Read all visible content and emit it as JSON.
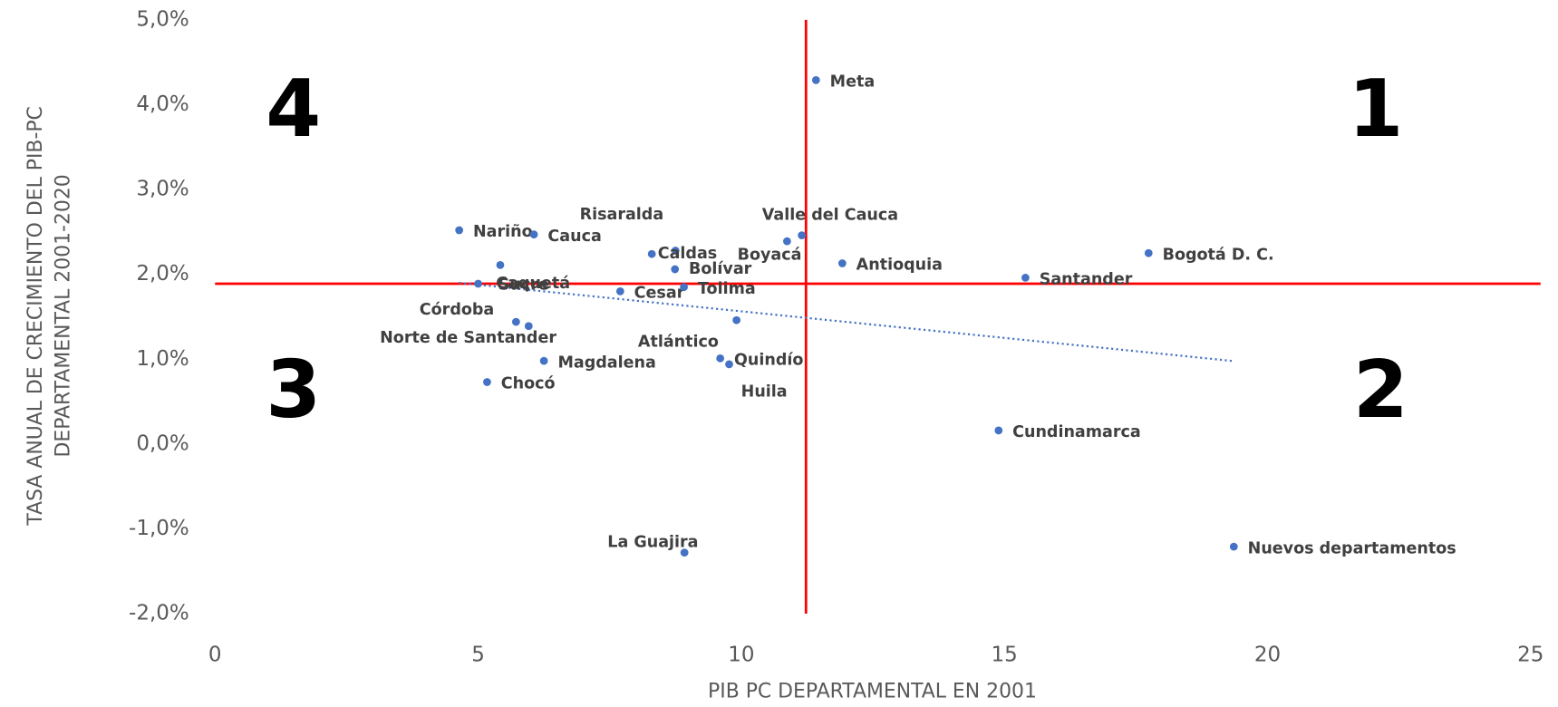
{
  "chart_data": {
    "type": "scatter",
    "x_label": "PIB PC DEPARTAMENTAL EN 2001",
    "y_label": [
      "TASA ANUAL DE CRECIMIENTO DEL PIB-PC",
      "DEPARTAMENTAL 2001-2020"
    ],
    "xlim": [
      0,
      25
    ],
    "xticks": [
      0,
      5,
      10,
      15,
      20,
      25
    ],
    "ylim": [
      -2,
      5
    ],
    "yticks": [
      {
        "value": -2,
        "label": "-2,0%"
      },
      {
        "value": -1,
        "label": "-1,0%"
      },
      {
        "value": 0,
        "label": "0,0%"
      },
      {
        "value": 1,
        "label": "1,0%"
      },
      {
        "value": 2,
        "label": "2,0%"
      },
      {
        "value": 3,
        "label": "3,0%"
      },
      {
        "value": 4,
        "label": "4,0%"
      },
      {
        "value": 5,
        "label": "5,0%"
      }
    ],
    "color": "#4472c4",
    "labels": [
      "Meta",
      "Bogotá D. C.",
      "Santander",
      "Antioquia",
      "Valle del Cauca",
      "Boyacá",
      "Risaralda",
      "Caldas",
      "Bolívar",
      "Nariño",
      "Cauca",
      "Sucre",
      "Caquetá",
      "Cesar",
      "Tolima",
      "Atlántico",
      "Córdoba",
      "Norte de Santander",
      "Magdalena",
      "Quindío",
      "Huila",
      "Chocó",
      "Cundinamarca",
      "La Guajira",
      "Nuevos departamentos"
    ],
    "x": [
      11.42,
      17.74,
      15.4,
      11.92,
      11.15,
      10.87,
      8.75,
      8.3,
      8.74,
      4.64,
      6.06,
      5.42,
      5.0,
      7.7,
      8.91,
      9.91,
      5.72,
      5.96,
      6.25,
      9.6,
      9.77,
      5.17,
      14.89,
      8.92,
      19.36
    ],
    "y": [
      4.29,
      2.25,
      1.96,
      2.13,
      2.46,
      2.39,
      2.28,
      2.24,
      2.06,
      2.52,
      2.47,
      2.11,
      1.89,
      1.8,
      1.85,
      1.46,
      1.44,
      1.39,
      0.98,
      1.01,
      0.94,
      0.73,
      0.16,
      -1.28,
      -1.21
    ],
    "reference_lines": {
      "x": 11.23,
      "y": 1.89,
      "color": "#ff0000"
    },
    "trendline": {
      "x": [
        4.64,
        19.32
      ],
      "y": [
        1.9,
        0.98
      ]
    },
    "quadrants": [
      "1",
      "2",
      "3",
      "4"
    ]
  }
}
